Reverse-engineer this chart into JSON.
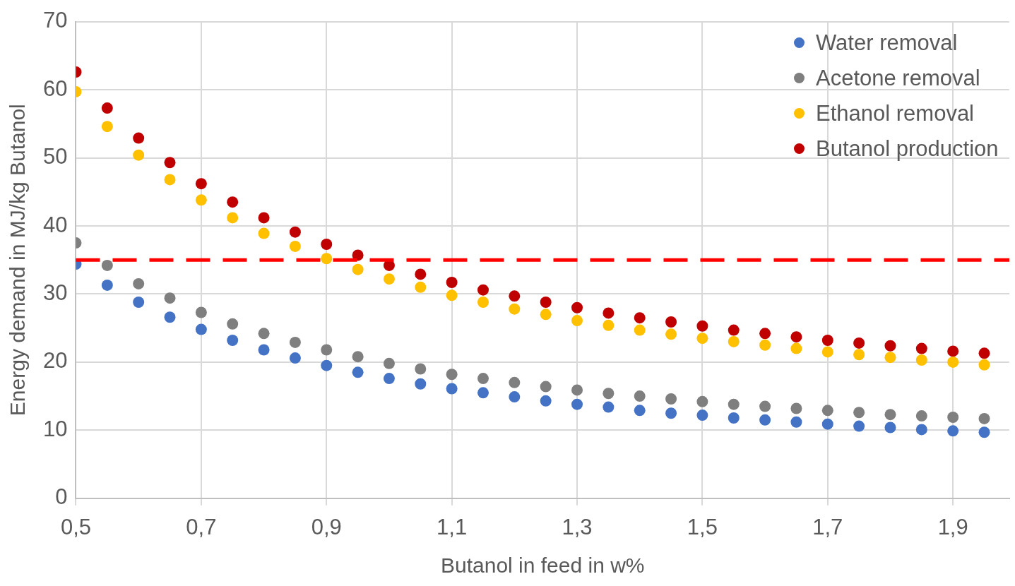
{
  "chart_data": {
    "type": "scatter",
    "xlabel": "Butanol in feed in w%",
    "ylabel": "Energy demand in MJ/kg Butanol",
    "x": [
      0.5,
      0.55,
      0.6,
      0.65,
      0.7,
      0.75,
      0.8,
      0.85,
      0.9,
      0.95,
      1.0,
      1.05,
      1.1,
      1.15,
      1.2,
      1.25,
      1.3,
      1.35,
      1.4,
      1.45,
      1.5,
      1.55,
      1.6,
      1.65,
      1.7,
      1.75,
      1.8,
      1.85,
      1.9,
      1.95
    ],
    "series": [
      {
        "name": "Water removal",
        "color": "#4472c4",
        "values": [
          34.4,
          31.3,
          28.8,
          26.6,
          24.8,
          23.2,
          21.8,
          20.6,
          19.5,
          18.5,
          17.6,
          16.8,
          16.1,
          15.5,
          14.9,
          14.3,
          13.8,
          13.4,
          12.9,
          12.5,
          12.2,
          11.8,
          11.5,
          11.2,
          10.9,
          10.6,
          10.4,
          10.1,
          9.9,
          9.7
        ]
      },
      {
        "name": "Acetone removal",
        "color": "#7f7f7f",
        "values": [
          37.5,
          34.2,
          31.5,
          29.4,
          27.3,
          25.6,
          24.2,
          22.9,
          21.8,
          20.8,
          19.8,
          19.0,
          18.2,
          17.6,
          17.0,
          16.4,
          15.9,
          15.4,
          15.0,
          14.6,
          14.2,
          13.8,
          13.5,
          13.2,
          12.9,
          12.6,
          12.3,
          12.1,
          11.9,
          11.7
        ]
      },
      {
        "name": "Ethanol removal",
        "color": "#ffc000",
        "values": [
          59.7,
          54.6,
          50.4,
          46.8,
          43.8,
          41.2,
          38.9,
          37.0,
          35.2,
          33.6,
          32.2,
          31.0,
          29.8,
          28.8,
          27.8,
          27.0,
          26.1,
          25.4,
          24.7,
          24.1,
          23.5,
          23.0,
          22.5,
          22.0,
          21.5,
          21.1,
          20.7,
          20.3,
          20.0,
          19.6
        ]
      },
      {
        "name": "Butanol production",
        "color": "#c00000",
        "values": [
          62.6,
          57.3,
          52.9,
          49.3,
          46.2,
          43.5,
          41.2,
          39.1,
          37.3,
          35.7,
          34.2,
          32.9,
          31.7,
          30.6,
          29.7,
          28.8,
          28.0,
          27.2,
          26.5,
          25.9,
          25.3,
          24.7,
          24.2,
          23.7,
          23.2,
          22.8,
          22.4,
          22.0,
          21.6,
          21.3
        ]
      }
    ],
    "xlim": [
      0.5,
      1.99
    ],
    "xticks": [
      {
        "value": 0.5,
        "label": "0,5"
      },
      {
        "value": 0.7,
        "label": "0,7"
      },
      {
        "value": 0.9,
        "label": "0,9"
      },
      {
        "value": 1.1,
        "label": "1,1"
      },
      {
        "value": 1.3,
        "label": "1,3"
      },
      {
        "value": 1.5,
        "label": "1,5"
      },
      {
        "value": 1.7,
        "label": "1,7"
      },
      {
        "value": 1.9,
        "label": "1,9"
      }
    ],
    "ylim": [
      0,
      70
    ],
    "yticks": [
      0,
      10,
      20,
      30,
      40,
      50,
      60,
      70
    ],
    "ref_lines": [
      {
        "axis": "y",
        "value": 35,
        "color": "#ff0000",
        "line_style": "dashed"
      }
    ],
    "grid": true,
    "legend": "top right",
    "marker": "circle"
  }
}
